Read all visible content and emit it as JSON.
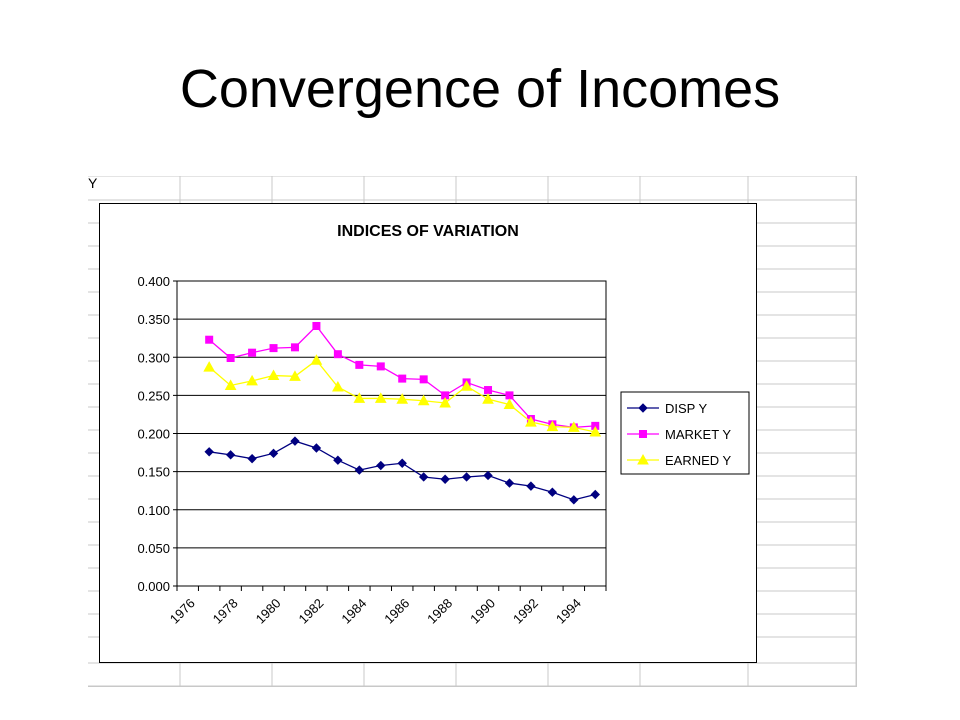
{
  "slide": {
    "title": "Convergence of Incomes"
  },
  "sheet": {
    "cell_fragment": "Y"
  },
  "chart_data": {
    "type": "line",
    "title": "INDICES OF VARIATION",
    "xlabel": "",
    "ylabel": "",
    "x": [
      1976,
      1977,
      1978,
      1979,
      1980,
      1981,
      1982,
      1983,
      1984,
      1985,
      1986,
      1987,
      1988,
      1989,
      1990,
      1991,
      1992,
      1993,
      1994,
      1995
    ],
    "x_tick_labels": [
      "1976",
      "1978",
      "1980",
      "1982",
      "1984",
      "1986",
      "1988",
      "1990",
      "1992",
      "1994"
    ],
    "y_tick_labels": [
      "0.000",
      "0.050",
      "0.100",
      "0.150",
      "0.200",
      "0.250",
      "0.300",
      "0.350",
      "0.400"
    ],
    "ylim": [
      0,
      0.4
    ],
    "grid": "horizontal",
    "legend_position": "right",
    "series": [
      {
        "name": "DISP Y",
        "color": "#000080",
        "marker": "diamond",
        "values": [
          null,
          0.176,
          0.172,
          0.167,
          0.174,
          0.19,
          0.181,
          0.165,
          0.152,
          0.158,
          0.161,
          0.143,
          0.14,
          0.143,
          0.145,
          0.135,
          0.131,
          0.123,
          0.113,
          0.12
        ]
      },
      {
        "name": "MARKET Y",
        "color": "#ff00ff",
        "marker": "square",
        "values": [
          null,
          0.323,
          0.299,
          0.306,
          0.312,
          0.313,
          0.341,
          0.304,
          0.29,
          0.288,
          0.272,
          0.271,
          0.25,
          0.267,
          0.257,
          0.25,
          0.219,
          0.212,
          0.208,
          0.21
        ]
      },
      {
        "name": "EARNED Y",
        "color": "#ffff00",
        "marker": "triangle",
        "values": [
          null,
          0.287,
          0.263,
          0.269,
          0.276,
          0.275,
          0.296,
          0.261,
          0.246,
          0.246,
          0.245,
          0.243,
          0.24,
          0.262,
          0.245,
          0.238,
          0.215,
          0.209,
          0.208,
          0.202
        ]
      }
    ]
  }
}
